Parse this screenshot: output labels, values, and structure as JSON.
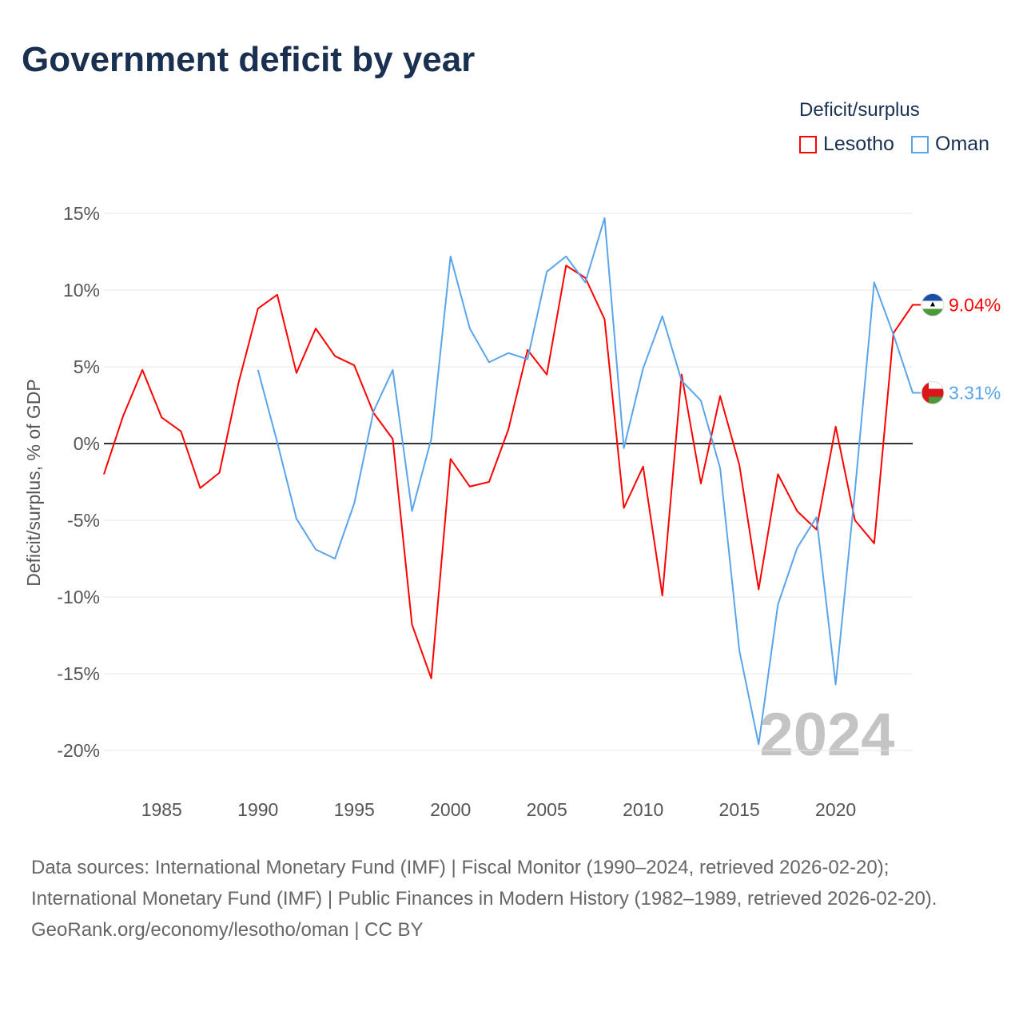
{
  "title": "Government deficit by year",
  "legend": {
    "title": "Deficit/surplus",
    "items": [
      {
        "name": "Lesotho",
        "color": "#ff0000"
      },
      {
        "name": "Oman",
        "color": "#5aa4ea"
      }
    ]
  },
  "year_watermark": "2024",
  "footer": {
    "sources": "Data sources: International Monetary Fund (IMF) | Fiscal Monitor (1990–2024, retrieved 2026-02-20); International Monetary Fund (IMF) | Public Finances in Modern History (1982–1989, retrieved 2026-02-20).",
    "credit": "GeoRank.org/economy/lesotho/oman | CC BY"
  },
  "chart_data": {
    "type": "line",
    "title": "Government deficit by year",
    "xlabel": "",
    "ylabel": "Deficit/surplus, % of GDP",
    "xlim": [
      1982,
      2024
    ],
    "ylim": [
      -20,
      15
    ],
    "x_ticks": [
      1985,
      1990,
      1995,
      2000,
      2005,
      2010,
      2015,
      2020
    ],
    "y_ticks": [
      15,
      10,
      5,
      0,
      -5,
      -10,
      -15,
      -20
    ],
    "y_tick_labels": [
      "15%",
      "10%",
      "5%",
      "0%",
      "-5%",
      "-10%",
      "-15%",
      "-20%"
    ],
    "grid": true,
    "legend_position": "top-right",
    "series": [
      {
        "name": "Lesotho",
        "color": "#ff0000",
        "end_label": "9.04%",
        "start_year": 1982,
        "values": [
          -2.0,
          1.8,
          4.8,
          1.7,
          0.8,
          -2.9,
          -1.9,
          4.0,
          8.8,
          9.7,
          4.6,
          7.5,
          5.7,
          5.1,
          2.0,
          0.3,
          -11.8,
          -15.3,
          -1.0,
          -2.8,
          -2.5,
          0.9,
          6.1,
          4.5,
          11.6,
          10.8,
          8.1,
          -4.2,
          -1.5,
          -9.9,
          4.5,
          -2.6,
          3.1,
          -1.4,
          -9.5,
          -2.0,
          -4.4,
          -5.6,
          1.1,
          -5.0,
          -6.5,
          7.2,
          9.04
        ]
      },
      {
        "name": "Oman",
        "color": "#5aa4ea",
        "end_label": "3.31%",
        "start_year": 1990,
        "values": [
          4.8,
          0.1,
          -4.9,
          -6.9,
          -7.5,
          -3.9,
          2.1,
          4.8,
          -4.4,
          0.3,
          12.2,
          7.5,
          5.3,
          5.9,
          5.5,
          11.2,
          12.2,
          10.5,
          14.7,
          -0.3,
          4.9,
          8.3,
          4.1,
          2.8,
          -1.6,
          -13.5,
          -19.6,
          -10.5,
          -6.8,
          -4.8,
          -15.7,
          -3.1,
          10.5,
          7.1,
          3.31
        ]
      }
    ]
  }
}
